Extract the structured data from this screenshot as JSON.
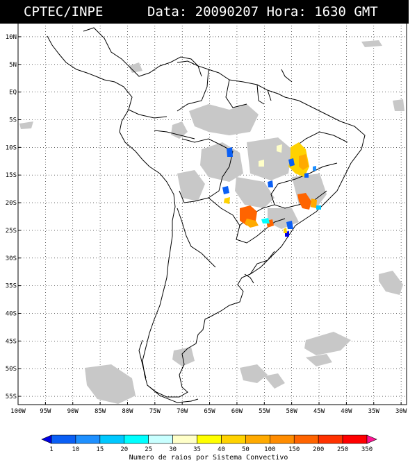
{
  "header": {
    "left_title": "CPTEC/INPE",
    "right_title": "Data: 20090207 Hora: 1630 GMT"
  },
  "axes": {
    "lat_labels": [
      "10N",
      "5N",
      "EQ",
      "5S",
      "10S",
      "15S",
      "20S",
      "25S",
      "30S",
      "35S",
      "40S",
      "45S",
      "50S",
      "55S"
    ],
    "lon_labels": [
      "100W",
      "95W",
      "90W",
      "85W",
      "80W",
      "75W",
      "70W",
      "65W",
      "60W",
      "55W",
      "50W",
      "45W",
      "40W",
      "35W",
      "30W"
    ]
  },
  "legend": {
    "ticks": [
      "1",
      "10",
      "15",
      "20",
      "25",
      "30",
      "35",
      "40",
      "50",
      "100",
      "150",
      "200",
      "250",
      "350"
    ],
    "colors": [
      "#0000e6",
      "#0a5ff5",
      "#1e90ff",
      "#00c8ff",
      "#00ffff",
      "#c8ffff",
      "#ffffc8",
      "#ffff00",
      "#ffd200",
      "#ffaa00",
      "#ff8c00",
      "#ff6400",
      "#ff3200",
      "#ff0000",
      "#ff1493"
    ],
    "label": "Numero de raios por Sistema Convectivo"
  },
  "map_colors": {
    "cloud": "#c8c8c8",
    "coast": "#000000"
  }
}
